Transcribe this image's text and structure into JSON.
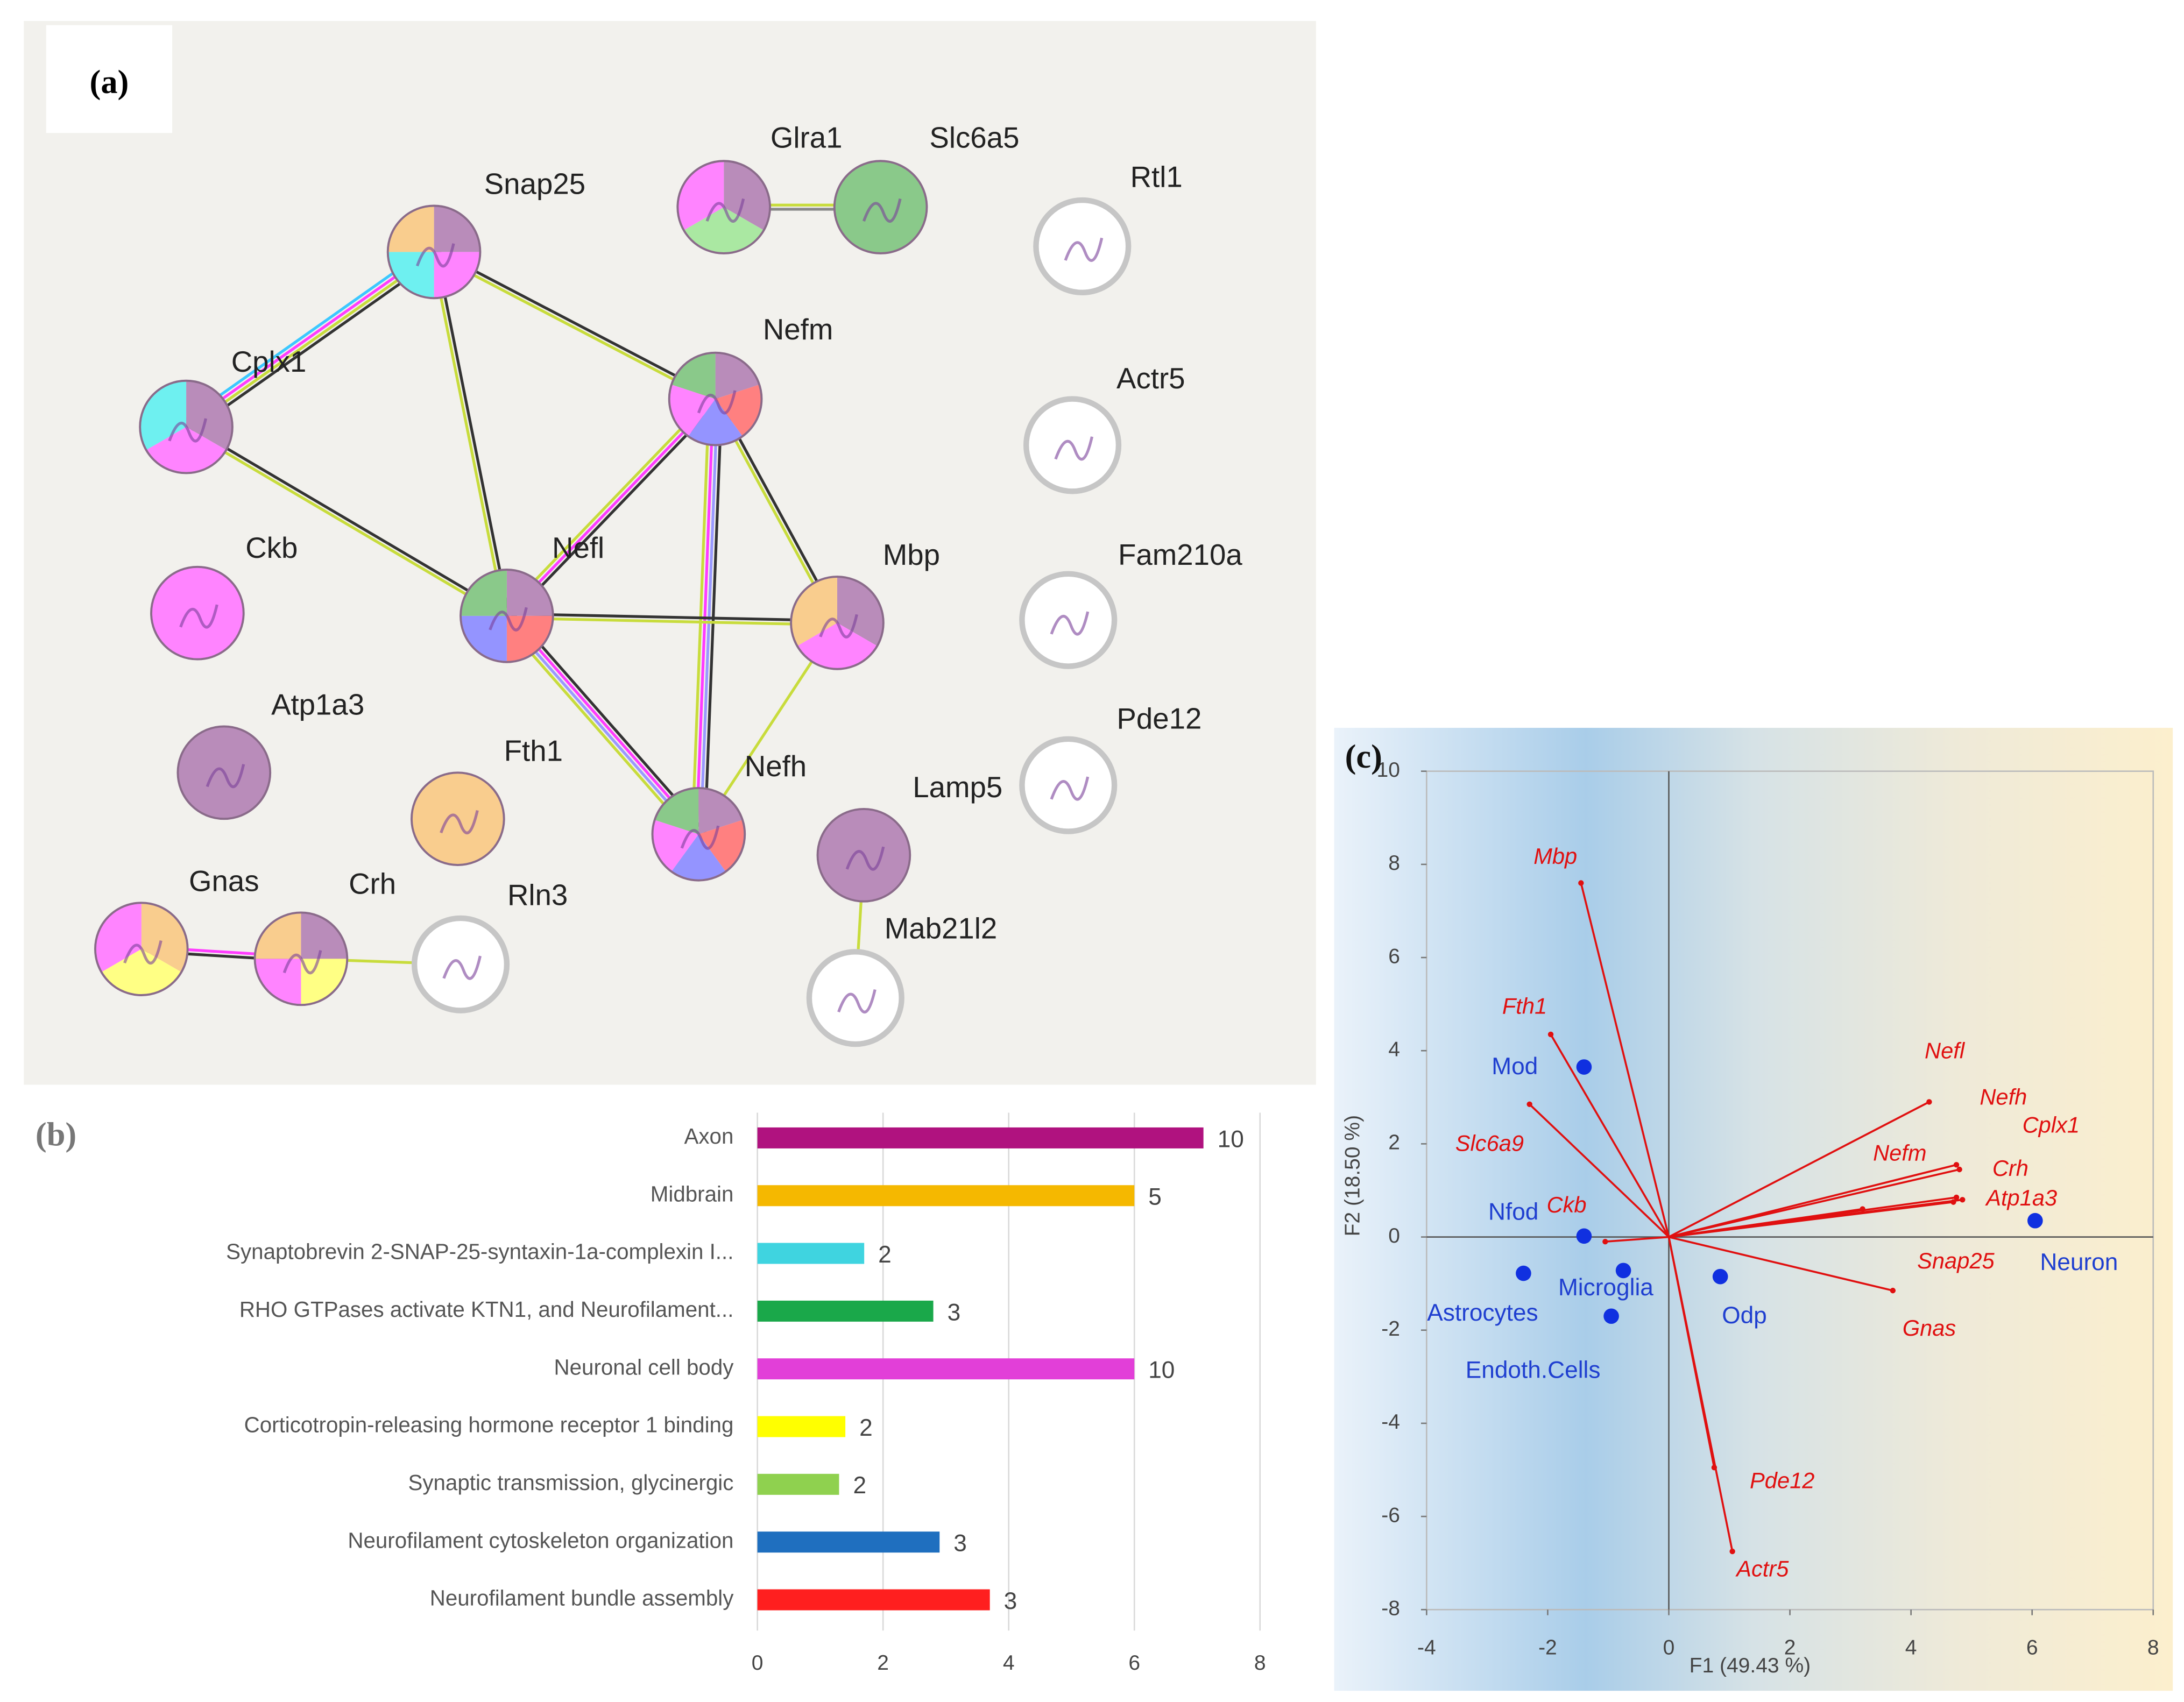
{
  "network": {
    "panel_label": "(a)",
    "nodes": [
      "Snap25",
      "Glra1",
      "Slc6a5",
      "Rtl1",
      "Cplx1",
      "Nefm",
      "Actr5",
      "Ckb",
      "Nefl",
      "Mbp",
      "Fam210a",
      "Atp1a3",
      "Fth1",
      "Pde12",
      "Nefh",
      "Lamp5",
      "Gnas",
      "Crh",
      "Rln3",
      "Mab21l2"
    ],
    "edges": [
      [
        0,
        4
      ],
      [
        0,
        5
      ],
      [
        0,
        8
      ],
      [
        4,
        8
      ],
      [
        1,
        2
      ],
      [
        5,
        8
      ],
      [
        5,
        14
      ],
      [
        5,
        9
      ],
      [
        8,
        9
      ],
      [
        8,
        14
      ],
      [
        9,
        14
      ],
      [
        16,
        17
      ],
      [
        17,
        18
      ],
      [
        15,
        19
      ]
    ]
  },
  "chart_data": [
    {
      "type": "barh",
      "panel_label": "(b)",
      "categories": [
        "Axon",
        "Midbrain",
        "Synaptobrevin 2-SNAP-25-syntaxin-1a-complexin I...",
        "RHO GTPases activate KTN1, and Neurofilament...",
        "Neuronal cell body",
        "Corticotropin-releasing hormone receptor 1 binding",
        "Synaptic transmission, glycinergic",
        "Neurofilament cytoskeleton organization",
        "Neurofilament bundle assembly"
      ],
      "values": [
        7.1,
        6,
        1.7,
        2.8,
        6,
        1.4,
        1.3,
        2.9,
        3.7
      ],
      "bar_labels": [
        10,
        5,
        2,
        3,
        10,
        2,
        2,
        3,
        3
      ],
      "colors": [
        "#b0127f",
        "#f5b800",
        "#3fd4e0",
        "#1aa84a",
        "#e23fd8",
        "#ffff00",
        "#8fd14f",
        "#1f6fbf",
        "#ff1f1f"
      ],
      "xlim": [
        0,
        8
      ],
      "xticks": [
        0,
        2,
        4,
        6,
        8
      ],
      "grid": true
    },
    {
      "type": "biplot",
      "panel_label": "(c)",
      "xlabel": "F1 (49.43 %)",
      "ylabel": "F2 (18.50 %)",
      "xlim": [
        -4,
        8
      ],
      "ylim": [
        -8,
        10
      ],
      "xticks": [
        -4,
        -2,
        0,
        2,
        4,
        6,
        8
      ],
      "yticks": [
        -8,
        -6,
        -4,
        -2,
        0,
        2,
        4,
        6,
        8,
        10
      ],
      "observations": {
        "labels": [
          "Mod",
          "Nfod",
          "Astrocytes",
          "Microglia",
          "Endoth.Cells",
          "Odp",
          "Neuron"
        ],
        "x": [
          -1.4,
          -1.4,
          -2.4,
          -0.75,
          -0.95,
          0.85,
          6.05
        ],
        "y": [
          3.65,
          0.02,
          -0.78,
          -0.72,
          -1.7,
          -0.85,
          0.35
        ],
        "color": "#1030e0"
      },
      "variables": {
        "labels": [
          "Mbp",
          "Fth1",
          "Slc6a9",
          "Ckb",
          "Nefl",
          "Nefh",
          "Cplx1",
          "Nefm",
          "Crh",
          "Atp1a3",
          "Snap25",
          "Gnas",
          "Pde12",
          "Actr5"
        ],
        "x": [
          -1.45,
          -1.95,
          -2.3,
          -1.05,
          4.3,
          4.75,
          4.8,
          3.2,
          4.75,
          4.85,
          4.7,
          3.7,
          0.75,
          1.05
        ],
        "y": [
          7.6,
          4.35,
          2.85,
          -0.1,
          2.9,
          1.55,
          1.45,
          0.6,
          0.85,
          0.8,
          0.75,
          -1.15,
          -4.95,
          -6.75
        ],
        "color": "#e01010"
      }
    }
  ]
}
